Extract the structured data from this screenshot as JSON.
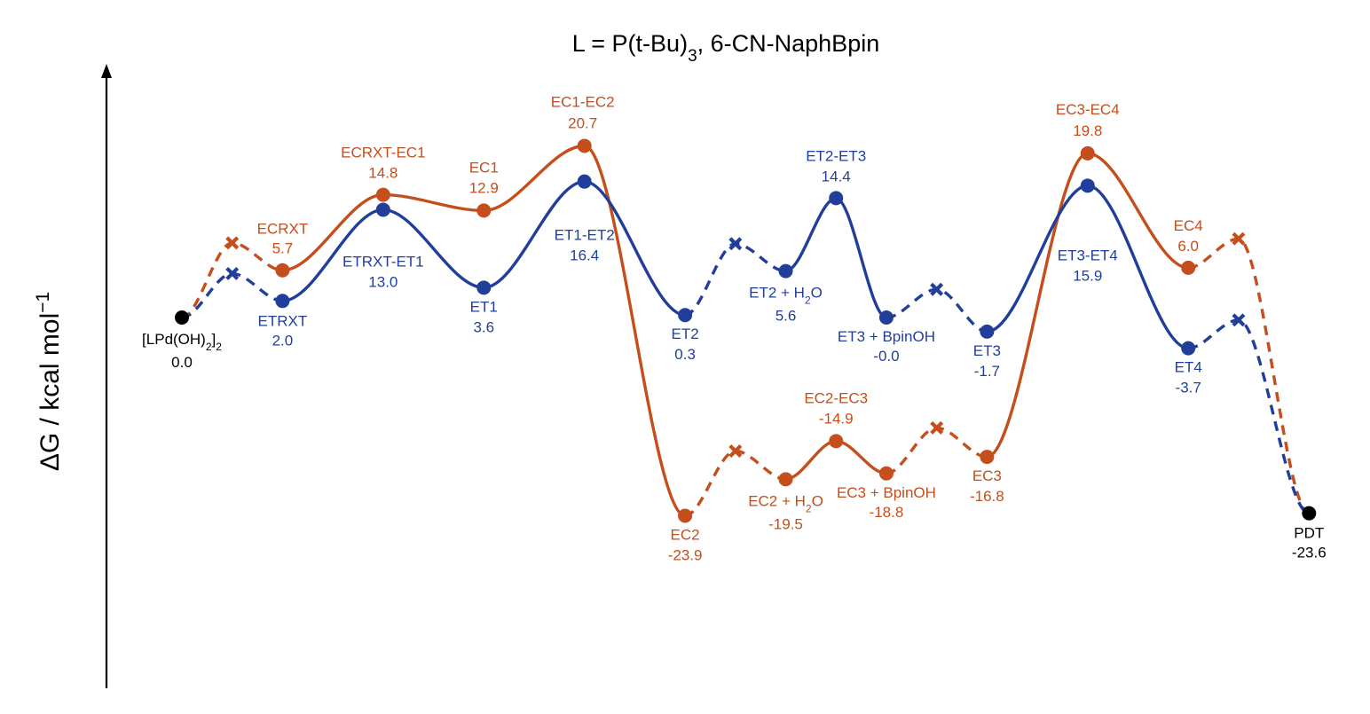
{
  "chart_data": {
    "type": "line",
    "title": "L = P(t-Bu)",
    "title_sub": "3",
    "title_rest": ", 6-CN-NaphBpin",
    "ylabel": "ΔG / kcal mol",
    "ylabel_sup": "−1",
    "axis": "y-only-arrow",
    "grid": false,
    "colors": {
      "EC": "#c44e1c",
      "ET": "#213f9a",
      "common": "#000000"
    },
    "common_points": [
      {
        "id": "start",
        "name": "[LPd(OH)",
        "name_sub": "2",
        "name_rest": "]",
        "name_sub2": "2",
        "value": "0.0",
        "y": 0.0
      },
      {
        "id": "pdt",
        "name": "PDT",
        "value": "-23.6",
        "y": -23.6
      }
    ],
    "series": [
      {
        "key": "EC",
        "points": [
          {
            "id": "ECRXT",
            "name": "ECRXT",
            "value": "5.7",
            "y": 5.7
          },
          {
            "id": "ECRXT-EC1",
            "name": "ECRXT-EC1",
            "value": "14.8",
            "y": 14.8
          },
          {
            "id": "EC1",
            "name": "EC1",
            "value": "12.9",
            "y": 12.9
          },
          {
            "id": "EC1-EC2",
            "name": "EC1-EC2",
            "value": "20.7",
            "y": 20.7
          },
          {
            "id": "EC2",
            "name": "EC2",
            "value": "-23.9",
            "y": -23.9
          },
          {
            "id": "EC2+H2O",
            "name": "EC2 + H",
            "name_sub": "2",
            "name_rest": "O",
            "value": "-19.5",
            "y": -19.5
          },
          {
            "id": "EC2-EC3",
            "name": "EC2-EC3",
            "value": "-14.9",
            "y": -14.9
          },
          {
            "id": "EC3+BpinOH",
            "name": "EC3 + BpinOH",
            "value": "-18.8",
            "y": -18.8
          },
          {
            "id": "EC3",
            "name": "EC3",
            "value": "-16.8",
            "y": -16.8
          },
          {
            "id": "EC3-EC4",
            "name": "EC3-EC4",
            "value": "19.8",
            "y": 19.8
          },
          {
            "id": "EC4",
            "name": "EC4",
            "value": "6.0",
            "y": 6.0
          }
        ]
      },
      {
        "key": "ET",
        "points": [
          {
            "id": "ETRXT",
            "name": "ETRXT",
            "value": "2.0",
            "y": 2.0
          },
          {
            "id": "ETRXT-ET1",
            "name": "ETRXT-ET1",
            "value": "13.0",
            "y": 13.0
          },
          {
            "id": "ET1",
            "name": "ET1",
            "value": "3.6",
            "y": 3.6
          },
          {
            "id": "ET1-ET2",
            "name": "ET1-ET2",
            "value": "16.4",
            "y": 16.4
          },
          {
            "id": "ET2",
            "name": "ET2",
            "value": "0.3",
            "y": 0.3
          },
          {
            "id": "ET2+H2O",
            "name": "ET2 + H",
            "name_sub": "2",
            "name_rest": "O",
            "value": "5.6",
            "y": 5.6
          },
          {
            "id": "ET2-ET3",
            "name": "ET2-ET3",
            "value": "14.4",
            "y": 14.4
          },
          {
            "id": "ET3+BpinOH",
            "name": "ET3 + BpinOH",
            "value": "-0.0",
            "y": 0.0
          },
          {
            "id": "ET3",
            "name": "ET3",
            "value": "-1.7",
            "y": -1.7
          },
          {
            "id": "ET3-ET4",
            "name": "ET3-ET4",
            "value": "15.9",
            "y": 15.9
          },
          {
            "id": "ET4",
            "name": "ET4",
            "value": "-3.7",
            "y": -3.7
          }
        ]
      }
    ]
  }
}
